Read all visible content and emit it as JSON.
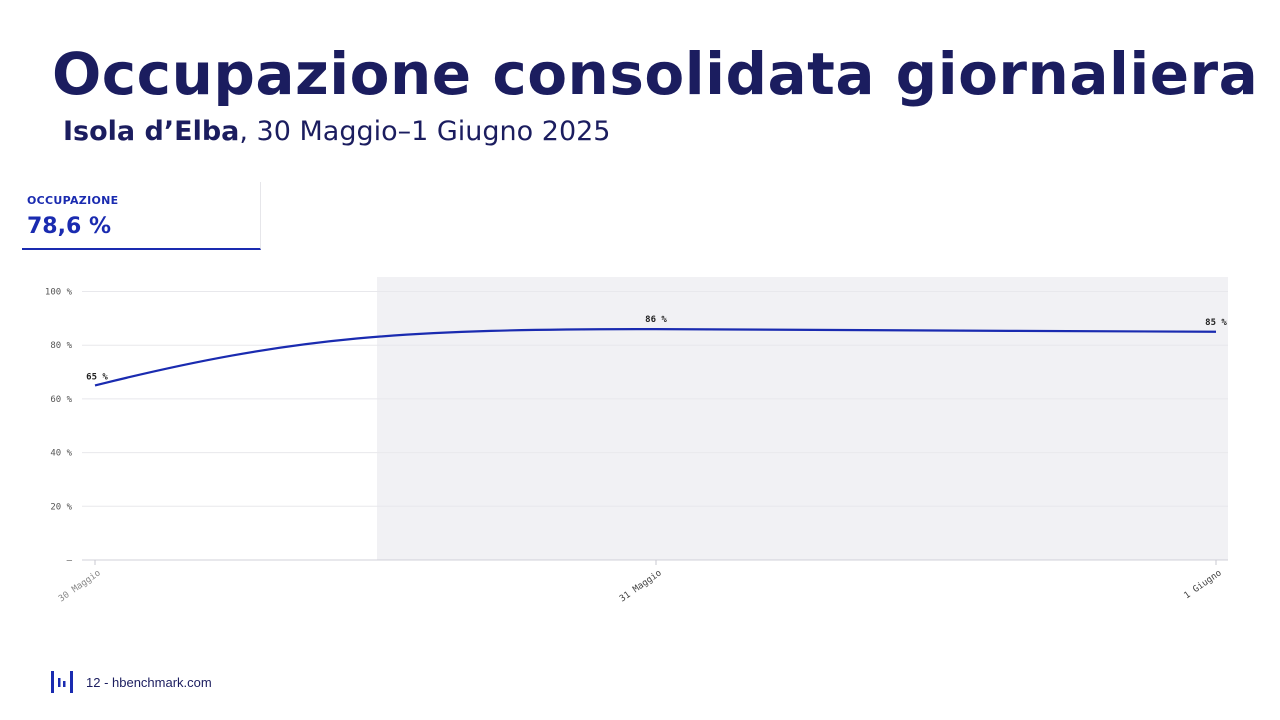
{
  "header": {
    "title": "Occupazione consolidata giornaliera",
    "location": "Isola d’Elba",
    "date_range": ", 30 Maggio–1 Giugno 2025"
  },
  "kpi": {
    "label": "OCCUPAZIONE",
    "value": "78,6 %"
  },
  "chart_data": {
    "type": "line",
    "categories": [
      "30 Maggio",
      "31 Maggio",
      "1 Giugno"
    ],
    "series": [
      {
        "values": [
          65,
          86,
          85
        ]
      }
    ],
    "data_labels": [
      "65 %",
      "86 %",
      "85 %"
    ],
    "y_tick_labels": [
      "–",
      "20 %",
      "40 %",
      "60 %",
      "80 %",
      "100 %"
    ],
    "y_ticks": [
      0,
      20,
      40,
      60,
      80,
      100
    ],
    "ylim": [
      0,
      100
    ],
    "grid": true,
    "shaded_x_range": [
      "30 Maggio",
      "1 Giugno"
    ],
    "colors": {
      "line": "#1a2bb0",
      "shade": "#f1f1f4",
      "grid": "#e8e8ec"
    }
  },
  "footer": {
    "text": "12 - hbenchmark.com"
  }
}
